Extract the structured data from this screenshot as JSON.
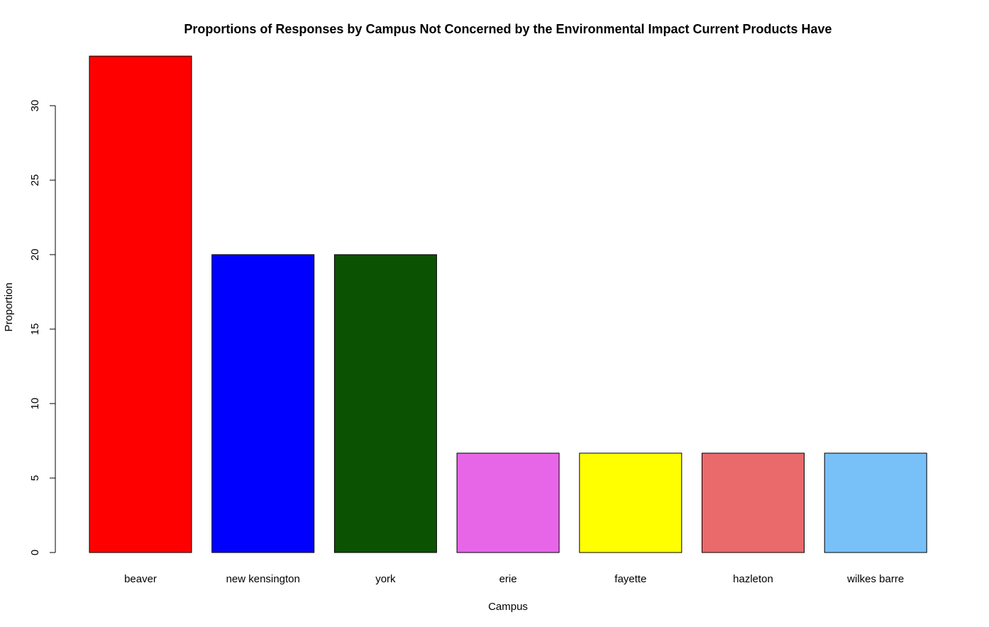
{
  "chart_data": {
    "type": "bar",
    "title": "Proportions of Responses by Campus Not Concerned by the Environmental Impact Current Products Have",
    "xlabel": "Campus",
    "ylabel": "Proportion",
    "categories": [
      "beaver",
      "new kensington",
      "york",
      "erie",
      "fayette",
      "hazleton",
      "wilkes barre"
    ],
    "values": [
      33.33,
      20,
      20,
      6.67,
      6.67,
      6.67,
      6.67
    ],
    "colors": [
      "#ff0000",
      "#0000ff",
      "#0b5302",
      "#e766e8",
      "#ffff00",
      "#ea696b",
      "#78c0f8"
    ],
    "yticks": [
      0,
      5,
      10,
      15,
      20,
      25,
      30
    ],
    "ylim": [
      0,
      33.33
    ],
    "grid": false,
    "legend": "none"
  }
}
